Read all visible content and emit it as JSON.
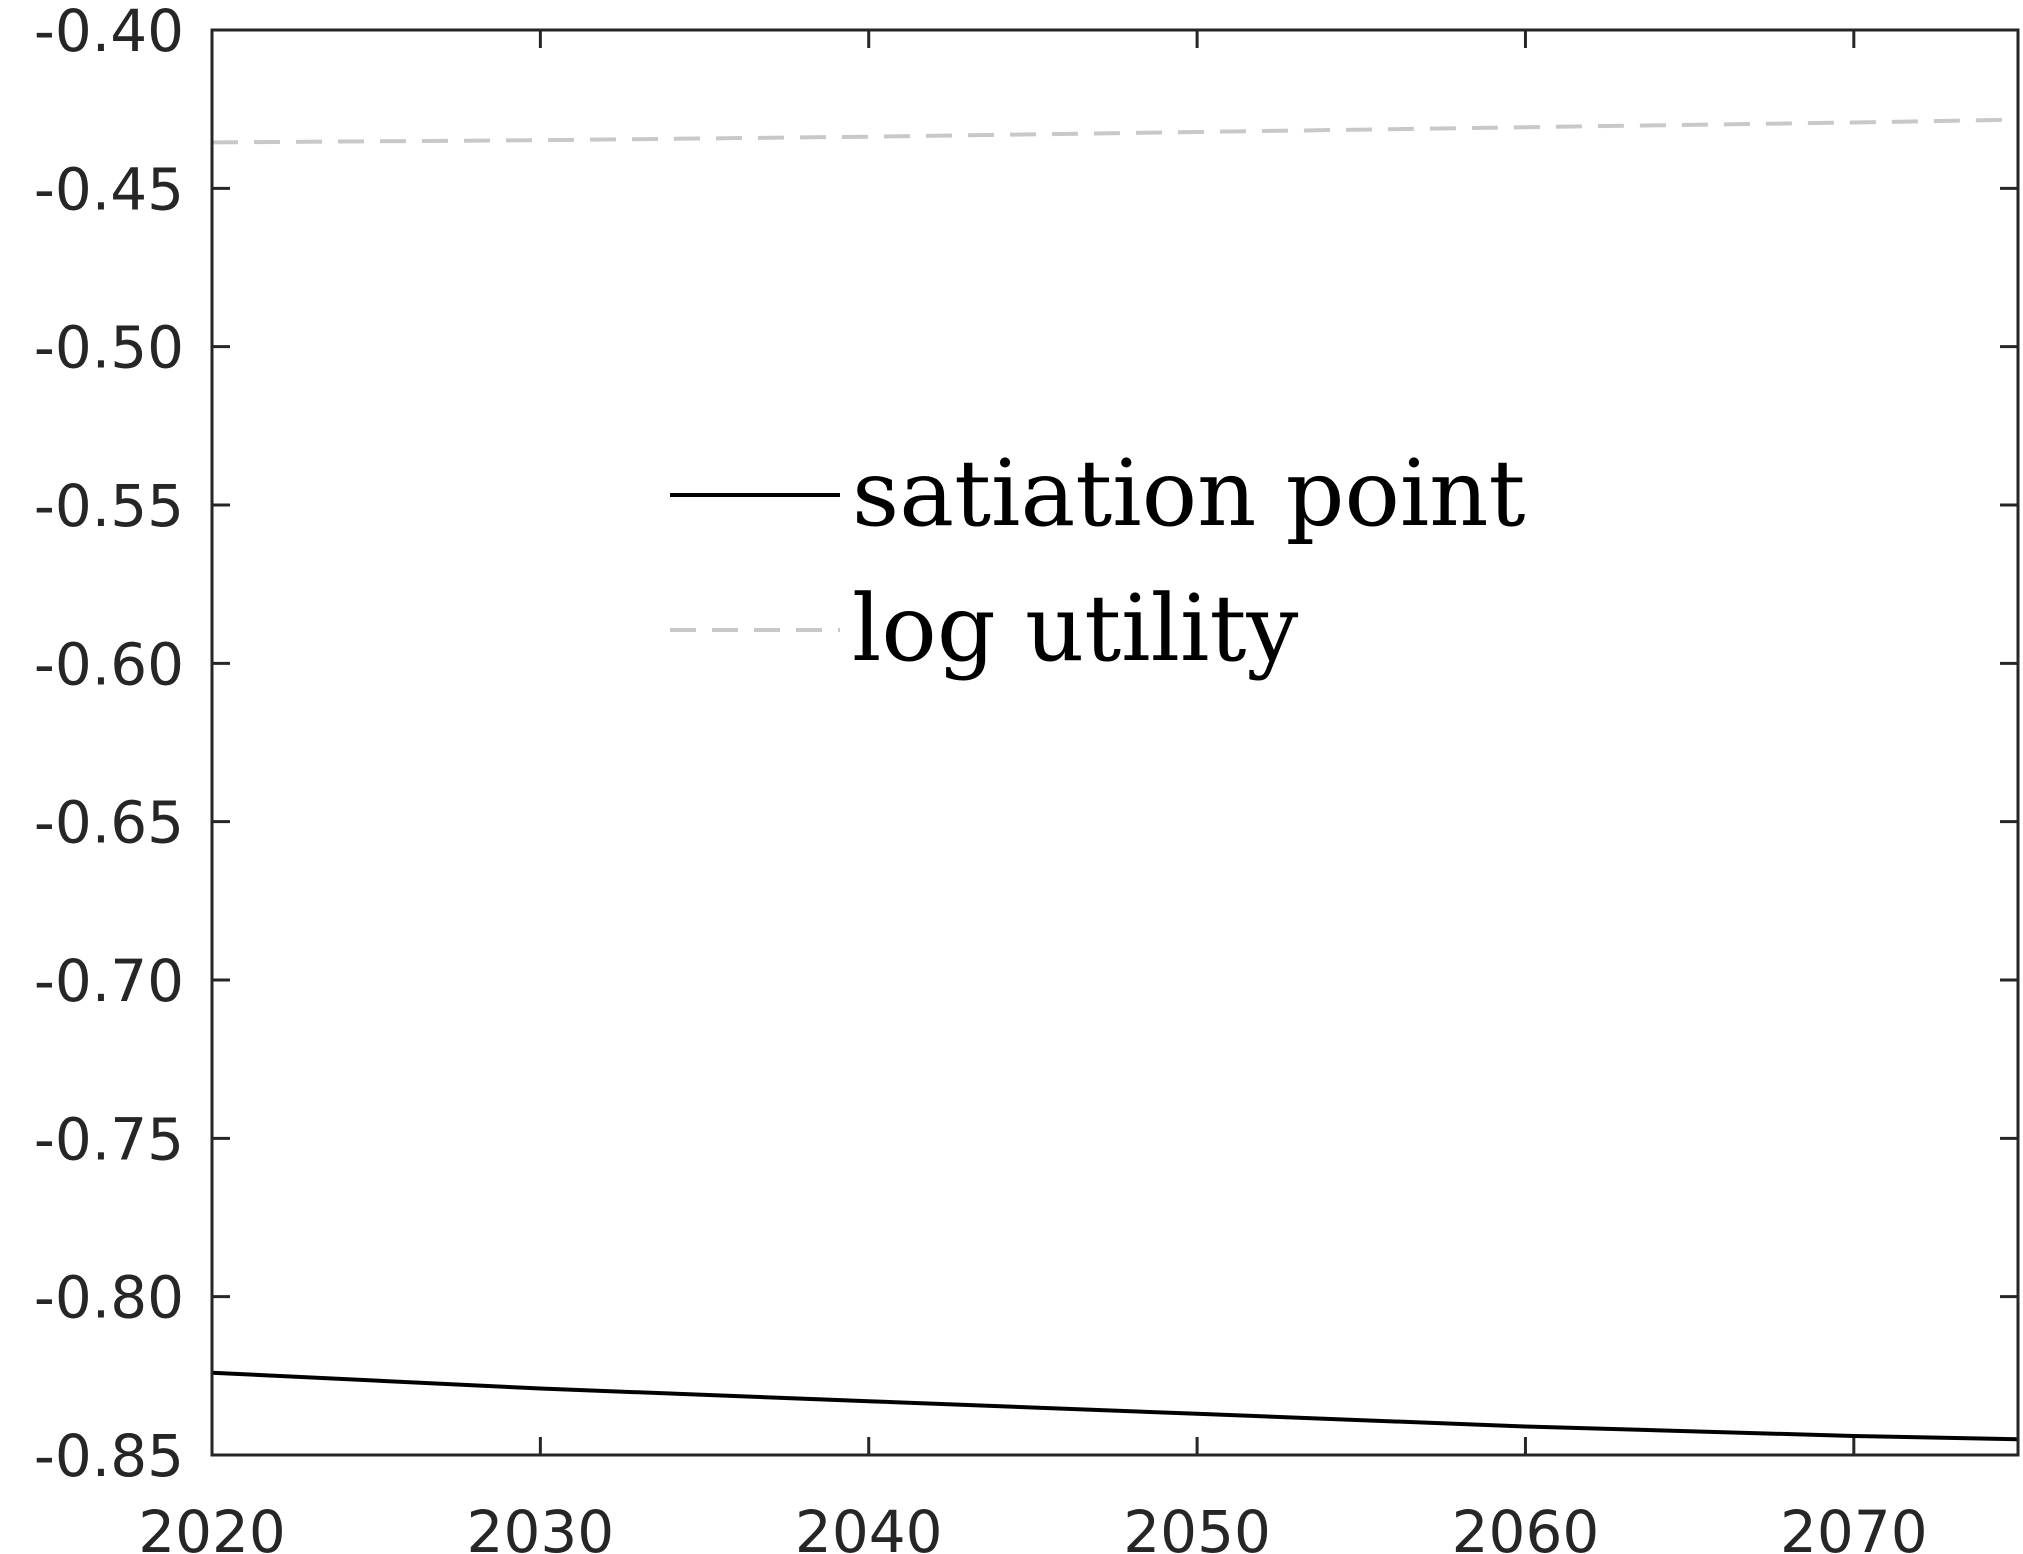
{
  "chart_data": {
    "type": "line",
    "title": "",
    "xlabel": "",
    "ylabel": "",
    "xlim": [
      2020,
      2075
    ],
    "ylim": [
      -0.85,
      -0.4
    ],
    "x_ticks": [
      2020,
      2030,
      2040,
      2050,
      2060,
      2070
    ],
    "x_tick_labels": [
      "2020",
      "2030",
      "2040",
      "2050",
      "2060",
      "2070"
    ],
    "y_ticks": [
      -0.4,
      -0.45,
      -0.5,
      -0.55,
      -0.6,
      -0.65,
      -0.7,
      -0.75,
      -0.8,
      -0.85
    ],
    "y_tick_labels": [
      "-0.40",
      "-0.45",
      "-0.50",
      "-0.55",
      "-0.60",
      "-0.65",
      "-0.70",
      "-0.75",
      "-0.80",
      "-0.85"
    ],
    "grid": false,
    "legend": "upper-center",
    "series": [
      {
        "name": "satiation point",
        "color": "#000000",
        "style": "solid",
        "x": [
          2020,
          2030,
          2040,
          2050,
          2060,
          2070,
          2075
        ],
        "y": [
          -0.824,
          -0.829,
          -0.833,
          -0.837,
          -0.841,
          -0.844,
          -0.845
        ]
      },
      {
        "name": "log utility",
        "color": "#c8c8c8",
        "style": "dashed",
        "x": [
          2020,
          2030,
          2040,
          2050,
          2060,
          2070,
          2075
        ],
        "y": [
          -0.4355,
          -0.4348,
          -0.4337,
          -0.4322,
          -0.4307,
          -0.4292,
          -0.4283
        ]
      }
    ]
  }
}
